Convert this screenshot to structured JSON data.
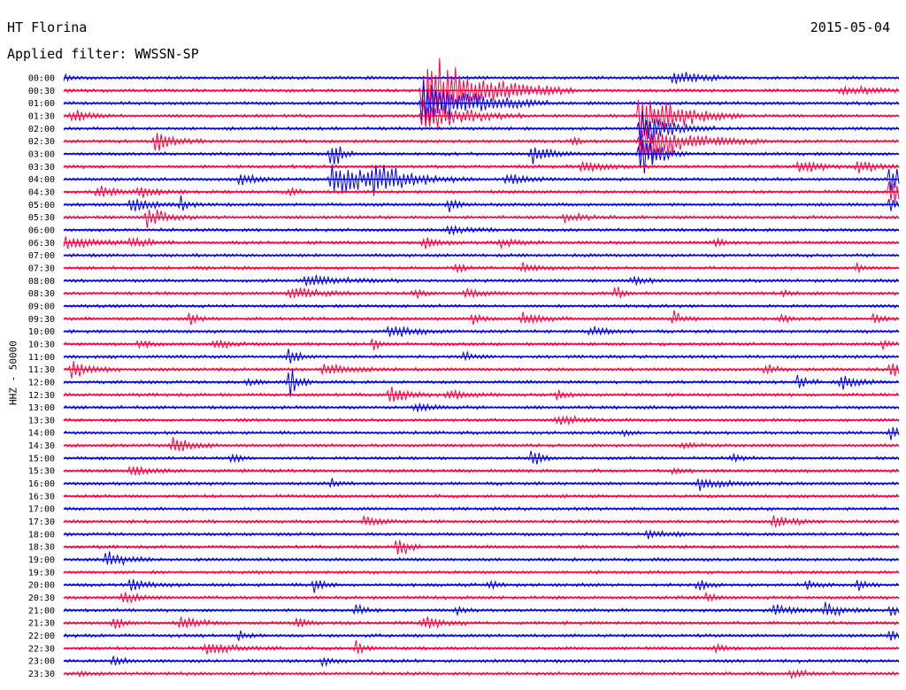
{
  "header": {
    "station": "HT Florina",
    "date": "2015-05-04",
    "filter_label": "Applied filter: WWSSN-SP"
  },
  "chart_data": {
    "type": "line",
    "ylabel": "HHZ - 50000",
    "colors": {
      "blue": "#0000ee",
      "red": "#ff0040"
    },
    "rows": [
      {
        "label": "00:00",
        "color": "blue",
        "events": [
          [
            0.73,
            0.03,
            10
          ],
          [
            0.0,
            0.01,
            4
          ]
        ]
      },
      {
        "label": "00:30",
        "color": "red",
        "events": [
          [
            0.43,
            0.06,
            55
          ],
          [
            0.93,
            0.04,
            6
          ]
        ]
      },
      {
        "label": "01:00",
        "color": "blue",
        "events": [
          [
            0.43,
            0.05,
            40
          ]
        ]
      },
      {
        "label": "01:30",
        "color": "red",
        "events": [
          [
            0.01,
            0.02,
            8
          ],
          [
            0.43,
            0.04,
            28
          ],
          [
            0.69,
            0.04,
            40
          ]
        ]
      },
      {
        "label": "02:00",
        "color": "blue",
        "events": [
          [
            0.69,
            0.03,
            30
          ]
        ]
      },
      {
        "label": "02:30",
        "color": "red",
        "events": [
          [
            0.11,
            0.02,
            14
          ],
          [
            0.69,
            0.05,
            30
          ],
          [
            0.61,
            0.01,
            5
          ]
        ]
      },
      {
        "label": "03:00",
        "color": "blue",
        "events": [
          [
            0.32,
            0.01,
            22
          ],
          [
            0.56,
            0.02,
            16
          ],
          [
            0.69,
            0.02,
            30
          ]
        ]
      },
      {
        "label": "03:30",
        "color": "red",
        "events": [
          [
            0.62,
            0.02,
            12
          ],
          [
            0.88,
            0.02,
            10
          ],
          [
            0.95,
            0.02,
            10
          ]
        ]
      },
      {
        "label": "04:00",
        "color": "blue",
        "events": [
          [
            0.32,
            0.04,
            25
          ],
          [
            0.37,
            0.04,
            20
          ],
          [
            0.21,
            0.02,
            8
          ],
          [
            0.53,
            0.02,
            8
          ],
          [
            0.99,
            0.01,
            25
          ]
        ]
      },
      {
        "label": "04:30",
        "color": "red",
        "events": [
          [
            0.04,
            0.02,
            10
          ],
          [
            0.09,
            0.02,
            10
          ],
          [
            0.27,
            0.01,
            6
          ],
          [
            0.99,
            0.02,
            22
          ]
        ]
      },
      {
        "label": "05:00",
        "color": "blue",
        "events": [
          [
            0.08,
            0.02,
            12
          ],
          [
            0.14,
            0.01,
            10
          ],
          [
            0.46,
            0.01,
            10
          ],
          [
            0.99,
            0.01,
            15
          ]
        ]
      },
      {
        "label": "05:30",
        "color": "red",
        "events": [
          [
            0.1,
            0.02,
            14
          ],
          [
            0.6,
            0.02,
            6
          ]
        ]
      },
      {
        "label": "06:00",
        "color": "blue",
        "events": [
          [
            0.46,
            0.02,
            8
          ]
        ]
      },
      {
        "label": "06:30",
        "color": "red",
        "events": [
          [
            0.0,
            0.04,
            8
          ],
          [
            0.08,
            0.02,
            8
          ],
          [
            0.43,
            0.02,
            8
          ],
          [
            0.52,
            0.02,
            6
          ],
          [
            0.78,
            0.01,
            6
          ]
        ]
      },
      {
        "label": "07:00",
        "color": "blue",
        "events": []
      },
      {
        "label": "07:30",
        "color": "red",
        "events": [
          [
            0.47,
            0.01,
            8
          ],
          [
            0.55,
            0.02,
            8
          ],
          [
            0.95,
            0.01,
            6
          ]
        ]
      },
      {
        "label": "08:00",
        "color": "blue",
        "events": [
          [
            0.29,
            0.04,
            8
          ],
          [
            0.68,
            0.02,
            6
          ]
        ]
      },
      {
        "label": "08:30",
        "color": "red",
        "events": [
          [
            0.27,
            0.03,
            10
          ],
          [
            0.42,
            0.01,
            8
          ],
          [
            0.48,
            0.02,
            8
          ],
          [
            0.66,
            0.01,
            10
          ],
          [
            0.86,
            0.01,
            6
          ]
        ]
      },
      {
        "label": "09:00",
        "color": "blue",
        "events": []
      },
      {
        "label": "09:30",
        "color": "red",
        "events": [
          [
            0.15,
            0.01,
            8
          ],
          [
            0.49,
            0.01,
            8
          ],
          [
            0.55,
            0.02,
            8
          ],
          [
            0.73,
            0.01,
            10
          ],
          [
            0.86,
            0.01,
            6
          ],
          [
            0.97,
            0.01,
            8
          ]
        ]
      },
      {
        "label": "10:00",
        "color": "blue",
        "events": [
          [
            0.39,
            0.03,
            8
          ],
          [
            0.63,
            0.02,
            8
          ]
        ]
      },
      {
        "label": "10:30",
        "color": "red",
        "events": [
          [
            0.09,
            0.01,
            6
          ],
          [
            0.18,
            0.02,
            6
          ],
          [
            0.37,
            0.01,
            8
          ],
          [
            0.98,
            0.01,
            6
          ]
        ]
      },
      {
        "label": "11:00",
        "color": "blue",
        "events": [
          [
            0.27,
            0.01,
            14
          ],
          [
            0.48,
            0.01,
            8
          ]
        ]
      },
      {
        "label": "11:30",
        "color": "red",
        "events": [
          [
            0.01,
            0.02,
            14
          ],
          [
            0.31,
            0.03,
            8
          ],
          [
            0.84,
            0.01,
            10
          ],
          [
            0.99,
            0.02,
            14
          ]
        ]
      },
      {
        "label": "12:00",
        "color": "blue",
        "events": [
          [
            0.27,
            0.01,
            20
          ],
          [
            0.22,
            0.01,
            6
          ],
          [
            0.88,
            0.01,
            10
          ],
          [
            0.93,
            0.02,
            10
          ]
        ]
      },
      {
        "label": "12:30",
        "color": "red",
        "events": [
          [
            0.39,
            0.02,
            12
          ],
          [
            0.46,
            0.02,
            8
          ],
          [
            0.59,
            0.01,
            6
          ]
        ]
      },
      {
        "label": "13:00",
        "color": "blue",
        "events": [
          [
            0.42,
            0.02,
            6
          ]
        ]
      },
      {
        "label": "13:30",
        "color": "red",
        "events": [
          [
            0.59,
            0.02,
            8
          ]
        ]
      },
      {
        "label": "14:00",
        "color": "blue",
        "events": [
          [
            0.99,
            0.01,
            10
          ],
          [
            0.67,
            0.01,
            6
          ]
        ]
      },
      {
        "label": "14:30",
        "color": "red",
        "events": [
          [
            0.13,
            0.02,
            14
          ],
          [
            0.74,
            0.01,
            6
          ]
        ]
      },
      {
        "label": "15:00",
        "color": "blue",
        "events": [
          [
            0.2,
            0.01,
            8
          ],
          [
            0.56,
            0.01,
            16
          ],
          [
            0.8,
            0.01,
            6
          ]
        ]
      },
      {
        "label": "15:30",
        "color": "red",
        "events": [
          [
            0.08,
            0.02,
            8
          ],
          [
            0.73,
            0.01,
            4
          ]
        ]
      },
      {
        "label": "16:00",
        "color": "blue",
        "events": [
          [
            0.76,
            0.03,
            8
          ],
          [
            0.32,
            0.01,
            6
          ]
        ]
      },
      {
        "label": "16:30",
        "color": "red",
        "events": []
      },
      {
        "label": "17:00",
        "color": "blue",
        "events": []
      },
      {
        "label": "17:30",
        "color": "red",
        "events": [
          [
            0.85,
            0.02,
            10
          ],
          [
            0.36,
            0.02,
            6
          ]
        ]
      },
      {
        "label": "18:00",
        "color": "blue",
        "events": [
          [
            0.7,
            0.02,
            6
          ]
        ]
      },
      {
        "label": "18:30",
        "color": "red",
        "events": [
          [
            0.4,
            0.01,
            18
          ]
        ]
      },
      {
        "label": "19:00",
        "color": "blue",
        "events": [
          [
            0.05,
            0.02,
            12
          ]
        ]
      },
      {
        "label": "19:30",
        "color": "red",
        "events": []
      },
      {
        "label": "20:00",
        "color": "blue",
        "events": [
          [
            0.08,
            0.02,
            10
          ],
          [
            0.3,
            0.01,
            10
          ],
          [
            0.76,
            0.01,
            8
          ],
          [
            0.89,
            0.01,
            8
          ],
          [
            0.95,
            0.01,
            8
          ],
          [
            0.51,
            0.01,
            6
          ]
        ]
      },
      {
        "label": "20:30",
        "color": "red",
        "events": [
          [
            0.07,
            0.02,
            8
          ],
          [
            0.77,
            0.01,
            6
          ]
        ]
      },
      {
        "label": "21:00",
        "color": "blue",
        "events": [
          [
            0.35,
            0.01,
            8
          ],
          [
            0.47,
            0.01,
            8
          ],
          [
            0.85,
            0.02,
            10
          ],
          [
            0.91,
            0.02,
            10
          ],
          [
            0.99,
            0.01,
            8
          ]
        ]
      },
      {
        "label": "21:30",
        "color": "red",
        "events": [
          [
            0.06,
            0.01,
            10
          ],
          [
            0.14,
            0.02,
            8
          ],
          [
            0.43,
            0.02,
            10
          ],
          [
            0.28,
            0.01,
            8
          ]
        ]
      },
      {
        "label": "22:00",
        "color": "blue",
        "events": [
          [
            0.21,
            0.01,
            6
          ],
          [
            0.99,
            0.01,
            8
          ]
        ]
      },
      {
        "label": "22:30",
        "color": "red",
        "events": [
          [
            0.17,
            0.03,
            8
          ],
          [
            0.35,
            0.01,
            10
          ],
          [
            0.78,
            0.01,
            6
          ]
        ]
      },
      {
        "label": "23:00",
        "color": "blue",
        "events": [
          [
            0.06,
            0.01,
            8
          ],
          [
            0.31,
            0.01,
            6
          ]
        ]
      },
      {
        "label": "23:30",
        "color": "red",
        "events": [
          [
            0.87,
            0.02,
            6
          ],
          [
            0.02,
            0.01,
            4
          ]
        ]
      }
    ]
  }
}
